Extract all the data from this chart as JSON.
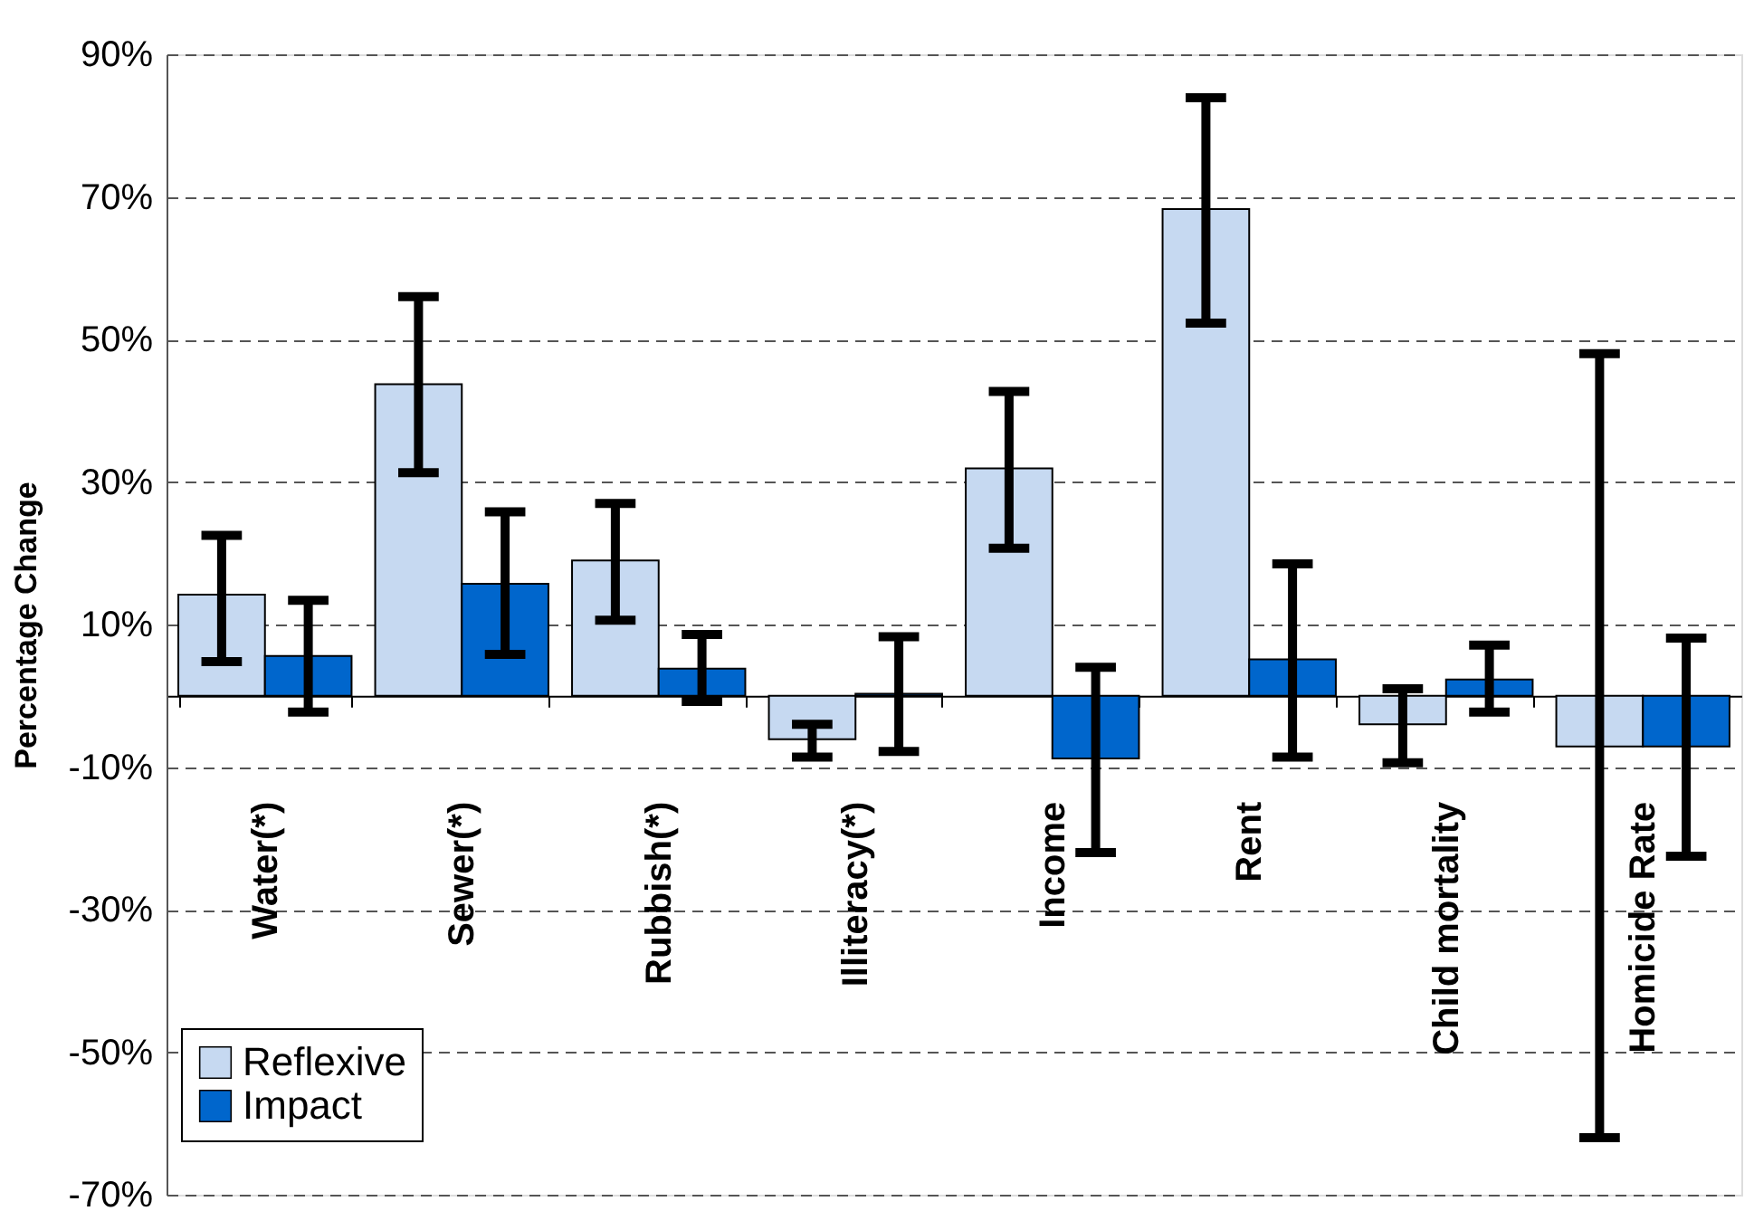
{
  "chart_data": {
    "type": "bar",
    "ylabel": "Percentage Change",
    "categories": [
      "Water(*)",
      "Sewer(*)",
      "Rubbish(*)",
      "Illiteracy(*)",
      "Income",
      "Rent",
      "Child mortality",
      "Homicide Rate"
    ],
    "series": [
      {
        "name": "Reflexive",
        "color": "#c6d9f1",
        "values": [
          14.2,
          43.7,
          19.0,
          -6.1,
          31.9,
          68.3,
          -4.0,
          -7.1
        ],
        "errors": [
          [
            4.8,
            22.5
          ],
          [
            31.3,
            56.0
          ],
          [
            10.6,
            27.0
          ],
          [
            -8.6,
            -4.0
          ],
          [
            20.7,
            42.7
          ],
          [
            52.3,
            83.9
          ],
          [
            -9.4,
            1.0
          ],
          [
            -62.0,
            48.0
          ]
        ]
      },
      {
        "name": "Impact",
        "color": "#0066cc",
        "values": [
          5.6,
          15.7,
          3.8,
          0.3,
          -8.8,
          5.1,
          2.3,
          -7.1
        ],
        "errors": [
          [
            -2.3,
            13.4
          ],
          [
            5.8,
            25.8
          ],
          [
            -0.8,
            8.6
          ],
          [
            -7.8,
            8.3
          ],
          [
            -22.0,
            4.0
          ],
          [
            -8.6,
            18.5
          ],
          [
            -2.3,
            7.1
          ],
          [
            -22.5,
            8.1
          ]
        ]
      }
    ],
    "ylim": [
      -70,
      90
    ],
    "yticks": [
      {
        "value": -70,
        "label": "-70%"
      },
      {
        "value": -50,
        "label": "-50%"
      },
      {
        "value": -30,
        "label": "-30%"
      },
      {
        "value": -10,
        "label": "-10%"
      },
      {
        "value": 10,
        "label": "10%"
      },
      {
        "value": 30,
        "label": "30%"
      },
      {
        "value": 50,
        "label": "50%"
      },
      {
        "value": 70,
        "label": "70%"
      },
      {
        "value": 90,
        "label": "90%"
      }
    ],
    "grid": "y",
    "legend": "bottom left"
  }
}
